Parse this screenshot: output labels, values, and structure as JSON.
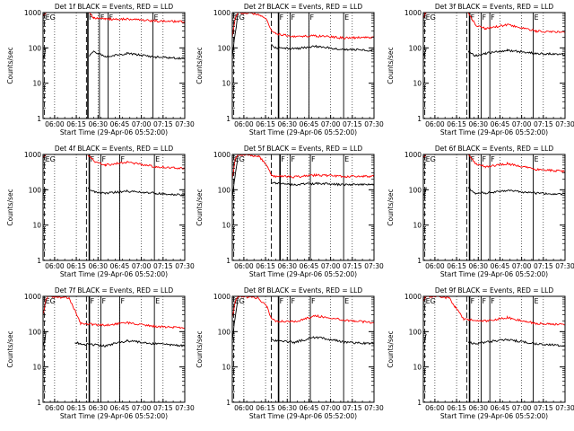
{
  "chart_data": [
    {
      "type": "line",
      "title": "Det 1f BLACK = Events, RED = LLD",
      "xlabel": "Start Time (29-Apr-06 05:52:00)",
      "ylabel": "Counts/sec",
      "xlim": [
        "05:52",
        "07:30"
      ],
      "ylim": [
        1,
        1000
      ],
      "y_scale": "log",
      "x_ticks": [
        "06:00",
        "06:15",
        "06:30",
        "06:45",
        "07:00",
        "07:15",
        "07:30"
      ],
      "y_ticks": [
        "1",
        "10",
        "100",
        "1000"
      ],
      "markers": [
        {
          "time": "05:53",
          "label": "EG"
        },
        {
          "time": "06:22",
          "label": ""
        },
        {
          "time": "06:23",
          "label": "F"
        },
        {
          "time": "06:31",
          "label": "F"
        },
        {
          "time": "06:37",
          "label": "F"
        },
        {
          "time": "07:08",
          "label": "E"
        }
      ],
      "series": [
        {
          "name": "Events",
          "color": "#000000",
          "x": [
            "05:52",
            "05:53",
            "05:54",
            "06:22",
            "06:24",
            "06:27",
            "06:35",
            "06:50",
            "07:10",
            "07:30"
          ],
          "y": [
            50,
            65,
            105,
            null,
            60,
            80,
            55,
            70,
            55,
            50
          ]
        },
        {
          "name": "LLD",
          "color": "#ff0000",
          "x": [
            "05:52",
            "05:53",
            "05:54",
            "06:22",
            "06:24",
            "06:27",
            "06:35",
            "06:50",
            "07:10",
            "07:30"
          ],
          "y": [
            800,
            900,
            1000,
            null,
            1000,
            700,
            650,
            650,
            580,
            550
          ]
        }
      ]
    },
    {
      "type": "line",
      "title": "Det 2f BLACK = Events, RED = LLD",
      "xlabel": "Start Time (29-Apr-06 05:52:00)",
      "ylabel": "Counts/sec",
      "xlim": [
        "05:52",
        "07:30"
      ],
      "ylim": [
        1,
        1000
      ],
      "y_scale": "log",
      "x_ticks": [
        "06:00",
        "06:15",
        "06:30",
        "06:45",
        "07:00",
        "07:15",
        "07:30"
      ],
      "y_ticks": [
        "1",
        "10",
        "100",
        "1000"
      ],
      "markers": [
        {
          "time": "05:53",
          "label": "EG"
        },
        {
          "time": "06:19",
          "label": ""
        },
        {
          "time": "06:24",
          "label": "F"
        },
        {
          "time": "06:32",
          "label": "F"
        },
        {
          "time": "06:45",
          "label": "F"
        },
        {
          "time": "07:09",
          "label": "E"
        }
      ],
      "series": [
        {
          "name": "Events",
          "color": "#000000",
          "x": [
            "05:52",
            "05:54",
            "05:56",
            "06:18",
            "06:19",
            "06:22",
            "06:35",
            "06:50",
            "07:10",
            "07:30"
          ],
          "y": [
            60,
            250,
            1000,
            null,
            130,
            100,
            95,
            110,
            90,
            85
          ]
        },
        {
          "name": "LLD",
          "color": "#ff0000",
          "x": [
            "05:52",
            "05:54",
            "05:56",
            "06:10",
            "06:16",
            "06:19",
            "06:22",
            "06:35",
            "06:50",
            "07:10",
            "07:30"
          ],
          "y": [
            200,
            700,
            1000,
            900,
            600,
            320,
            250,
            210,
            220,
            190,
            200
          ]
        }
      ]
    },
    {
      "type": "line",
      "title": "Det 3f BLACK = Events, RED = LLD",
      "xlabel": "Start Time (29-Apr-06 05:52:00)",
      "ylabel": "Counts/sec",
      "xlim": [
        "05:52",
        "07:30"
      ],
      "ylim": [
        1,
        1000
      ],
      "y_scale": "log",
      "x_ticks": [
        "06:00",
        "06:15",
        "06:30",
        "06:45",
        "07:00",
        "07:15",
        "07:30"
      ],
      "y_ticks": [
        "1",
        "10",
        "100",
        "1000"
      ],
      "markers": [
        {
          "time": "05:53",
          "label": "EG"
        },
        {
          "time": "06:22",
          "label": ""
        },
        {
          "time": "06:24",
          "label": "F"
        },
        {
          "time": "06:32",
          "label": "F"
        },
        {
          "time": "06:38",
          "label": "F"
        },
        {
          "time": "07:08",
          "label": "E"
        }
      ],
      "series": [
        {
          "name": "Events",
          "color": "#000000",
          "x": [
            "05:52",
            "05:53",
            "05:54",
            "06:22",
            "06:23",
            "06:28",
            "06:35",
            "06:50",
            "07:10",
            "07:30"
          ],
          "y": [
            60,
            70,
            100,
            null,
            80,
            60,
            70,
            85,
            70,
            65
          ]
        },
        {
          "name": "LLD",
          "color": "#ff0000",
          "x": [
            "05:52",
            "05:53",
            "05:54",
            "06:22",
            "06:23",
            "06:28",
            "06:35",
            "06:50",
            "07:10",
            "07:30"
          ],
          "y": [
            700,
            900,
            1000,
            null,
            1000,
            450,
            350,
            450,
            300,
            280
          ]
        }
      ]
    },
    {
      "type": "line",
      "title": "Det 4f BLACK = Events, RED = LLD",
      "xlabel": "Start Time (29-Apr-06 05:52:00)",
      "ylabel": "Counts/sec",
      "xlim": [
        "05:52",
        "07:30"
      ],
      "ylim": [
        1,
        1000
      ],
      "y_scale": "log",
      "x_ticks": [
        "06:00",
        "06:15",
        "06:30",
        "06:45",
        "07:00",
        "07:15",
        "07:30"
      ],
      "y_ticks": [
        "1",
        "10",
        "100",
        "1000"
      ],
      "markers": [
        {
          "time": "05:53",
          "label": "EG"
        },
        {
          "time": "06:22",
          "label": ""
        },
        {
          "time": "06:24",
          "label": "F"
        },
        {
          "time": "06:32",
          "label": "F"
        },
        {
          "time": "06:45",
          "label": "F"
        },
        {
          "time": "07:09",
          "label": "E"
        }
      ],
      "series": [
        {
          "name": "Events",
          "color": "#000000",
          "x": [
            "05:52",
            "05:53",
            "05:54",
            "06:22",
            "06:23",
            "06:28",
            "06:35",
            "06:50",
            "07:10",
            "07:30"
          ],
          "y": [
            70,
            80,
            110,
            null,
            110,
            85,
            80,
            90,
            80,
            70
          ]
        },
        {
          "name": "LLD",
          "color": "#ff0000",
          "x": [
            "05:52",
            "05:53",
            "05:54",
            "06:22",
            "06:23",
            "06:28",
            "06:35",
            "06:50",
            "07:10",
            "07:30"
          ],
          "y": [
            800,
            900,
            1000,
            null,
            1000,
            600,
            500,
            600,
            450,
            400
          ]
        }
      ]
    },
    {
      "type": "line",
      "title": "Det 5f BLACK = Events, RED = LLD",
      "xlabel": "Start Time (29-Apr-06 05:52:00)",
      "ylabel": "Counts/sec",
      "xlim": [
        "05:52",
        "07:30"
      ],
      "ylim": [
        1,
        1000
      ],
      "y_scale": "log",
      "x_ticks": [
        "06:00",
        "06:15",
        "06:30",
        "06:45",
        "07:00",
        "07:15",
        "07:30"
      ],
      "y_ticks": [
        "1",
        "10",
        "100",
        "1000"
      ],
      "markers": [
        {
          "time": "05:53",
          "label": "EG"
        },
        {
          "time": "06:19",
          "label": ""
        },
        {
          "time": "06:25",
          "label": "F"
        },
        {
          "time": "06:32",
          "label": "F"
        },
        {
          "time": "06:46",
          "label": "F"
        },
        {
          "time": "07:09",
          "label": "E"
        }
      ],
      "series": [
        {
          "name": "Events",
          "color": "#000000",
          "x": [
            "05:52",
            "05:54",
            "05:56",
            "06:18",
            "06:19",
            "06:22",
            "06:35",
            "06:50",
            "07:10",
            "07:30"
          ],
          "y": [
            60,
            250,
            1000,
            null,
            160,
            150,
            140,
            150,
            140,
            140
          ]
        },
        {
          "name": "LLD",
          "color": "#ff0000",
          "x": [
            "05:52",
            "05:54",
            "05:56",
            "06:10",
            "06:16",
            "06:19",
            "06:22",
            "06:35",
            "06:50",
            "07:10",
            "07:30"
          ],
          "y": [
            200,
            700,
            1000,
            900,
            500,
            260,
            240,
            230,
            260,
            240,
            240
          ]
        }
      ]
    },
    {
      "type": "line",
      "title": "Det 6f BLACK = Events, RED = LLD",
      "xlabel": "Start Time (29-Apr-06 05:52:00)",
      "ylabel": "Counts/sec",
      "xlim": [
        "05:52",
        "07:30"
      ],
      "ylim": [
        1,
        1000
      ],
      "y_scale": "log",
      "x_ticks": [
        "06:00",
        "06:15",
        "06:30",
        "06:45",
        "07:00",
        "07:15",
        "07:30"
      ],
      "y_ticks": [
        "1",
        "10",
        "100",
        "1000"
      ],
      "markers": [
        {
          "time": "05:53",
          "label": "EG"
        },
        {
          "time": "06:22",
          "label": ""
        },
        {
          "time": "06:24",
          "label": "F"
        },
        {
          "time": "06:32",
          "label": "F"
        },
        {
          "time": "06:38",
          "label": "F"
        },
        {
          "time": "07:08",
          "label": "E"
        }
      ],
      "series": [
        {
          "name": "Events",
          "color": "#000000",
          "x": [
            "05:52",
            "05:53",
            "05:54",
            "06:22",
            "06:23",
            "06:28",
            "06:35",
            "06:50",
            "07:10",
            "07:30"
          ],
          "y": [
            70,
            80,
            110,
            null,
            110,
            80,
            80,
            95,
            80,
            75
          ]
        },
        {
          "name": "LLD",
          "color": "#ff0000",
          "x": [
            "05:52",
            "05:53",
            "05:54",
            "06:22",
            "06:23",
            "06:28",
            "06:35",
            "06:50",
            "07:10",
            "07:30"
          ],
          "y": [
            800,
            900,
            1000,
            null,
            1000,
            550,
            450,
            550,
            380,
            330
          ]
        }
      ]
    },
    {
      "type": "line",
      "title": "Det 7f BLACK = Events, RED = LLD",
      "xlabel": "Start Time (29-Apr-06 05:52:00)",
      "ylabel": "Counts/sec",
      "xlim": [
        "05:52",
        "07:30"
      ],
      "ylim": [
        1,
        1000
      ],
      "y_scale": "log",
      "x_ticks": [
        "06:00",
        "06:15",
        "06:30",
        "06:45",
        "07:00",
        "07:15",
        "07:30"
      ],
      "y_ticks": [
        "1",
        "10",
        "100",
        "1000"
      ],
      "markers": [
        {
          "time": "05:53",
          "label": "EG"
        },
        {
          "time": "06:22",
          "label": ""
        },
        {
          "time": "06:24",
          "label": "F"
        },
        {
          "time": "06:32",
          "label": "F"
        },
        {
          "time": "06:45",
          "label": "F"
        },
        {
          "time": "07:09",
          "label": "E"
        }
      ],
      "series": [
        {
          "name": "Events",
          "color": "#000000",
          "x": [
            "05:52",
            "05:53",
            "05:54",
            "06:12",
            "06:14",
            "06:18",
            "06:35",
            "06:50",
            "07:10",
            "07:30"
          ],
          "y": [
            40,
            50,
            100,
            null,
            50,
            45,
            40,
            55,
            45,
            40
          ]
        },
        {
          "name": "LLD",
          "color": "#ff0000",
          "x": [
            "05:52",
            "05:54",
            "05:56",
            "06:10",
            "06:14",
            "06:18",
            "06:35",
            "06:50",
            "07:10",
            "07:30"
          ],
          "y": [
            300,
            800,
            1000,
            900,
            400,
            170,
            150,
            180,
            140,
            130
          ]
        }
      ]
    },
    {
      "type": "line",
      "title": "Det 8f BLACK = Events, RED = LLD",
      "xlabel": "Start Time (29-Apr-06 05:52:00)",
      "ylabel": "Counts/sec",
      "xlim": [
        "05:52",
        "07:30"
      ],
      "ylim": [
        1,
        1000
      ],
      "y_scale": "log",
      "x_ticks": [
        "06:00",
        "06:15",
        "06:30",
        "06:45",
        "07:00",
        "07:15",
        "07:30"
      ],
      "y_ticks": [
        "1",
        "10",
        "100",
        "1000"
      ],
      "markers": [
        {
          "time": "05:53",
          "label": "EG"
        },
        {
          "time": "06:19",
          "label": ""
        },
        {
          "time": "06:24",
          "label": "F"
        },
        {
          "time": "06:32",
          "label": "F"
        },
        {
          "time": "06:46",
          "label": "F"
        },
        {
          "time": "07:09",
          "label": "E"
        }
      ],
      "series": [
        {
          "name": "Events",
          "color": "#000000",
          "x": [
            "05:52",
            "05:54",
            "05:56",
            "06:18",
            "06:19",
            "06:22",
            "06:35",
            "06:50",
            "07:10",
            "07:30"
          ],
          "y": [
            60,
            250,
            1000,
            null,
            60,
            55,
            50,
            70,
            50,
            45
          ]
        },
        {
          "name": "LLD",
          "color": "#ff0000",
          "x": [
            "05:52",
            "05:54",
            "05:56",
            "06:10",
            "06:16",
            "06:19",
            "06:22",
            "06:35",
            "06:50",
            "07:10",
            "07:30"
          ],
          "y": [
            250,
            700,
            1000,
            900,
            500,
            230,
            200,
            190,
            280,
            210,
            180
          ]
        }
      ]
    },
    {
      "type": "line",
      "title": "Det 9f BLACK = Events, RED = LLD",
      "xlabel": "Start Time (29-Apr-06 05:52:00)",
      "ylabel": "Counts/sec",
      "xlim": [
        "05:52",
        "07:30"
      ],
      "ylim": [
        1,
        1000
      ],
      "y_scale": "log",
      "x_ticks": [
        "06:00",
        "06:15",
        "06:30",
        "06:45",
        "07:00",
        "07:15",
        "07:30"
      ],
      "y_ticks": [
        "1",
        "10",
        "100",
        "1000"
      ],
      "markers": [
        {
          "time": "05:53",
          "label": "EG"
        },
        {
          "time": "06:22",
          "label": ""
        },
        {
          "time": "06:24",
          "label": "F"
        },
        {
          "time": "06:32",
          "label": "F"
        },
        {
          "time": "06:38",
          "label": "F"
        },
        {
          "time": "07:08",
          "label": "E"
        }
      ],
      "series": [
        {
          "name": "Events",
          "color": "#000000",
          "x": [
            "05:52",
            "05:53",
            "05:54",
            "06:22",
            "06:23",
            "06:28",
            "06:35",
            "06:50",
            "07:10",
            "07:30"
          ],
          "y": [
            45,
            55,
            90,
            null,
            50,
            45,
            50,
            60,
            45,
            40
          ]
        },
        {
          "name": "LLD",
          "color": "#ff0000",
          "x": [
            "05:52",
            "05:53",
            "05:54",
            "06:10",
            "06:14",
            "06:20",
            "06:35",
            "06:50",
            "07:10",
            "07:30"
          ],
          "y": [
            700,
            900,
            1000,
            900,
            500,
            220,
            200,
            250,
            170,
            160
          ]
        }
      ]
    }
  ]
}
